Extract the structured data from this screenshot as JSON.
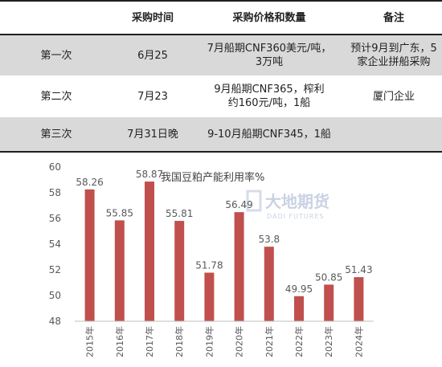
{
  "table": {
    "headers": [
      "",
      "采购时间",
      "采购价格和数量",
      "备注"
    ],
    "rows": [
      {
        "label": "第一次",
        "time": "6月25",
        "price_qty": "7月船期CNF360美元/吨，3万吨",
        "note": "预计9月到广东，5家企业拼船采购"
      },
      {
        "label": "第二次",
        "time": "7月23",
        "price_qty": "9月船期CNF365，榨利约160元/吨，1船",
        "note": "厦门企业"
      },
      {
        "label": "第三次",
        "time": "7月31日晚",
        "price_qty": "9-10月船期CNF345，1船",
        "note": ""
      }
    ]
  },
  "watermark": {
    "cn": "大地期货",
    "en": "DADI FUTURES"
  },
  "colors": {
    "bar": "#c0504d",
    "row_shade": "#d9d9d9",
    "rule": "#1f1f1f"
  },
  "chart_data": {
    "type": "bar",
    "title": "我国豆粕产能利用率%",
    "categories": [
      "2015年",
      "2016年",
      "2017年",
      "2018年",
      "2019年",
      "2020年",
      "2021年",
      "2022年",
      "2023年",
      "2024年"
    ],
    "values": [
      58.26,
      55.85,
      58.87,
      55.81,
      51.78,
      56.49,
      53.8,
      49.95,
      50.85,
      51.43
    ],
    "value_labels": [
      "58.26",
      "55.85",
      "58.87",
      "55.81",
      "51.78",
      "56.49",
      "53.8",
      "49.95",
      "50.85",
      "51.43"
    ],
    "yticks": [
      "60",
      "58",
      "56",
      "54",
      "52",
      "50",
      "48"
    ],
    "ylim": [
      48,
      60
    ],
    "xlabel": "",
    "ylabel": "",
    "grid": false,
    "legend": "none"
  }
}
